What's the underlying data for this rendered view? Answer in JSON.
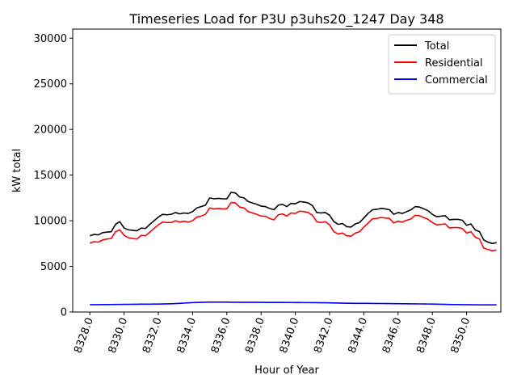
{
  "chart_data": {
    "type": "line",
    "title": "Timeseries Load for P3U p3uhs20_1247  Day 348",
    "xlabel": "Hour of Year",
    "ylabel": "kW total",
    "xlim": [
      8327.0,
      8352.0
    ],
    "ylim": [
      0,
      31000
    ],
    "xticks": [
      8328.0,
      8330.0,
      8332.0,
      8334.0,
      8336.0,
      8338.0,
      8340.0,
      8342.0,
      8344.0,
      8346.0,
      8348.0,
      8350.0
    ],
    "xtick_labels": [
      "8328.0",
      "8330.0",
      "8332.0",
      "8334.0",
      "8336.0",
      "8338.0",
      "8340.0",
      "8342.0",
      "8344.0",
      "8346.0",
      "8348.0",
      "8350.0"
    ],
    "yticks": [
      0,
      5000,
      10000,
      15000,
      20000,
      25000,
      30000
    ],
    "ytick_labels": [
      "0",
      "5000",
      "10000",
      "15000",
      "20000",
      "25000",
      "30000"
    ],
    "legend_position": "top-right",
    "grid": false,
    "x": [
      8328.0,
      8328.25,
      8328.5,
      8328.75,
      8329.0,
      8329.25,
      8329.5,
      8329.75,
      8330.0,
      8330.25,
      8330.5,
      8330.75,
      8331.0,
      8331.25,
      8331.5,
      8331.75,
      8332.0,
      8332.25,
      8332.5,
      8332.75,
      8333.0,
      8333.25,
      8333.5,
      8333.75,
      8334.0,
      8334.25,
      8334.5,
      8334.75,
      8335.0,
      8335.25,
      8335.5,
      8335.75,
      8336.0,
      8336.25,
      8336.5,
      8336.75,
      8337.0,
      8337.25,
      8337.5,
      8337.75,
      8338.0,
      8338.25,
      8338.5,
      8338.75,
      8339.0,
      8339.25,
      8339.5,
      8339.75,
      8340.0,
      8340.25,
      8340.5,
      8340.75,
      8341.0,
      8341.25,
      8341.5,
      8341.75,
      8342.0,
      8342.25,
      8342.5,
      8342.75,
      8343.0,
      8343.25,
      8343.5,
      8343.75,
      8344.0,
      8344.25,
      8344.5,
      8344.75,
      8345.0,
      8345.25,
      8345.5,
      8345.75,
      8346.0,
      8346.25,
      8346.5,
      8346.75,
      8347.0,
      8347.25,
      8347.5,
      8347.75,
      8348.0,
      8348.25,
      8348.5,
      8348.75,
      8349.0,
      8349.25,
      8349.5,
      8349.75,
      8350.0,
      8350.25,
      8350.5,
      8350.75,
      8351.0,
      8351.25,
      8351.5,
      8351.75
    ],
    "series": [
      {
        "name": "Total",
        "color": "#000000",
        "values": [
          8350,
          8500,
          8450,
          8700,
          8750,
          8800,
          9600,
          9900,
          9200,
          9000,
          8950,
          8900,
          9200,
          9150,
          9600,
          10000,
          10400,
          10700,
          10650,
          10700,
          10900,
          10750,
          10850,
          10800,
          11000,
          11400,
          11550,
          11700,
          12500,
          12400,
          12450,
          12400,
          12400,
          13100,
          13050,
          12600,
          12500,
          12100,
          11950,
          11800,
          11600,
          11550,
          11350,
          11200,
          11700,
          11800,
          11550,
          11900,
          11850,
          12100,
          12050,
          11950,
          11650,
          10900,
          10850,
          10900,
          10600,
          9900,
          9600,
          9700,
          9350,
          9300,
          9650,
          9800,
          10300,
          10800,
          11200,
          11250,
          11350,
          11300,
          11200,
          10700,
          10900,
          10800,
          11000,
          11200,
          11550,
          11500,
          11300,
          11100,
          10700,
          10450,
          10500,
          10550,
          10100,
          10150,
          10150,
          10050,
          9500,
          9650,
          9000,
          8800,
          7900,
          7650,
          7500,
          7600
        ]
      },
      {
        "name": "Residential",
        "color": "#ff0000",
        "values": [
          7550,
          7700,
          7650,
          7900,
          8000,
          8050,
          8800,
          9000,
          8400,
          8150,
          8050,
          8000,
          8400,
          8350,
          8750,
          9150,
          9550,
          9850,
          9800,
          9800,
          10000,
          9850,
          9950,
          9850,
          10000,
          10400,
          10500,
          10700,
          11400,
          11300,
          11350,
          11300,
          11300,
          12000,
          11950,
          11500,
          11400,
          11000,
          10850,
          10700,
          10500,
          10500,
          10250,
          10100,
          10650,
          10750,
          10500,
          10850,
          10800,
          11050,
          11000,
          10900,
          10600,
          9900,
          9800,
          9900,
          9550,
          8800,
          8550,
          8650,
          8350,
          8300,
          8650,
          8800,
          9300,
          9750,
          10200,
          10250,
          10350,
          10300,
          10250,
          9750,
          9950,
          9850,
          10050,
          10200,
          10600,
          10550,
          10350,
          10150,
          9800,
          9550,
          9600,
          9650,
          9200,
          9250,
          9250,
          9150,
          8650,
          8800,
          8200,
          8000,
          7000,
          6850,
          6700,
          6800
        ]
      },
      {
        "name": "Commercial",
        "color": "#0000ff",
        "values": [
          800,
          800,
          805,
          810,
          815,
          820,
          825,
          830,
          835,
          840,
          845,
          850,
          855,
          860,
          860,
          865,
          870,
          880,
          890,
          905,
          920,
          945,
          975,
          1005,
          1030,
          1050,
          1060,
          1070,
          1075,
          1080,
          1080,
          1075,
          1075,
          1070,
          1065,
          1060,
          1060,
          1060,
          1055,
          1055,
          1055,
          1050,
          1050,
          1050,
          1045,
          1045,
          1040,
          1040,
          1035,
          1035,
          1030,
          1030,
          1025,
          1020,
          1015,
          1010,
          1000,
          990,
          980,
          970,
          960,
          955,
          950,
          950,
          945,
          945,
          940,
          935,
          930,
          925,
          920,
          915,
          910,
          905,
          900,
          895,
          890,
          885,
          880,
          875,
          865,
          855,
          845,
          835,
          825,
          815,
          810,
          805,
          800,
          795,
          790,
          785,
          780,
          780,
          780,
          780
        ]
      }
    ]
  }
}
